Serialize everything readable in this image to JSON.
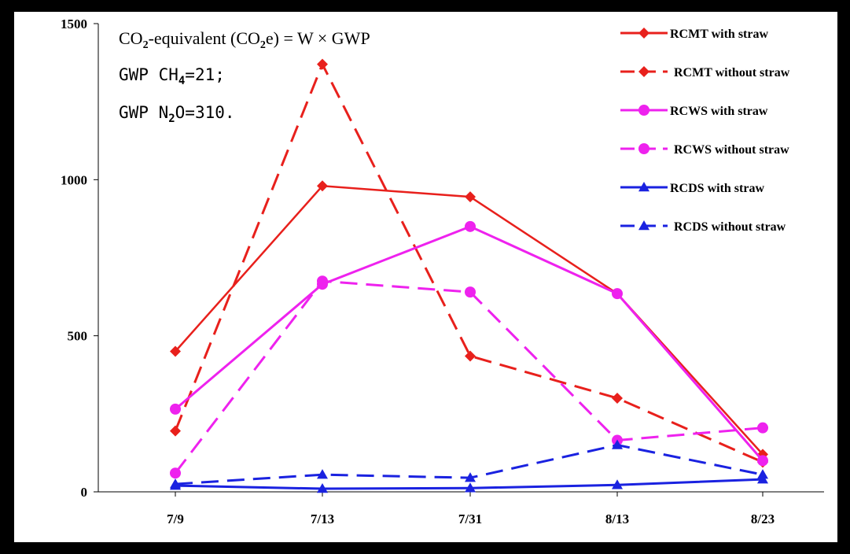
{
  "chart_data": {
    "type": "line",
    "categories": [
      "7/9",
      "7/13",
      "7/31",
      "8/13",
      "8/23"
    ],
    "ylim": [
      0,
      1500
    ],
    "yticks": [
      0,
      500,
      1000,
      1500
    ],
    "series": [
      {
        "name": "RCMT with straw",
        "color": "#e8201c",
        "dash": false,
        "marker": "diamond",
        "values": [
          450,
          980,
          945,
          635,
          120
        ]
      },
      {
        "name": "RCMT without straw",
        "color": "#e8201c",
        "dash": true,
        "marker": "diamond",
        "values": [
          195,
          1370,
          435,
          300,
          95
        ]
      },
      {
        "name": "RCWS with straw",
        "color": "#ee22ee",
        "dash": false,
        "marker": "circle",
        "values": [
          265,
          665,
          850,
          635,
          100
        ]
      },
      {
        "name": "RCWS without straw",
        "color": "#ee22ee",
        "dash": true,
        "marker": "circle",
        "values": [
          60,
          675,
          640,
          165,
          205
        ]
      },
      {
        "name": "RCDS with straw",
        "color": "#1a22e0",
        "dash": false,
        "marker": "triangle",
        "values": [
          20,
          10,
          12,
          22,
          40
        ]
      },
      {
        "name": "RCDS without straw",
        "color": "#1a22e0",
        "dash": true,
        "marker": "triangle",
        "values": [
          25,
          55,
          45,
          150,
          55
        ]
      }
    ],
    "annotations": {
      "line1_prefix": "CO",
      "line1_sub1": "2",
      "line1_mid": "-equivalent (CO",
      "line1_sub2": "2",
      "line1_suffix": "e)  = W × GWP",
      "line2_prefix": "GWP CH",
      "line2_sub": "4",
      "line2_suffix": "=21;",
      "line3_prefix": "GWP N",
      "line3_sub": "2",
      "line3_suffix": "O=310."
    },
    "legend_position": "top-right",
    "grid": false
  }
}
